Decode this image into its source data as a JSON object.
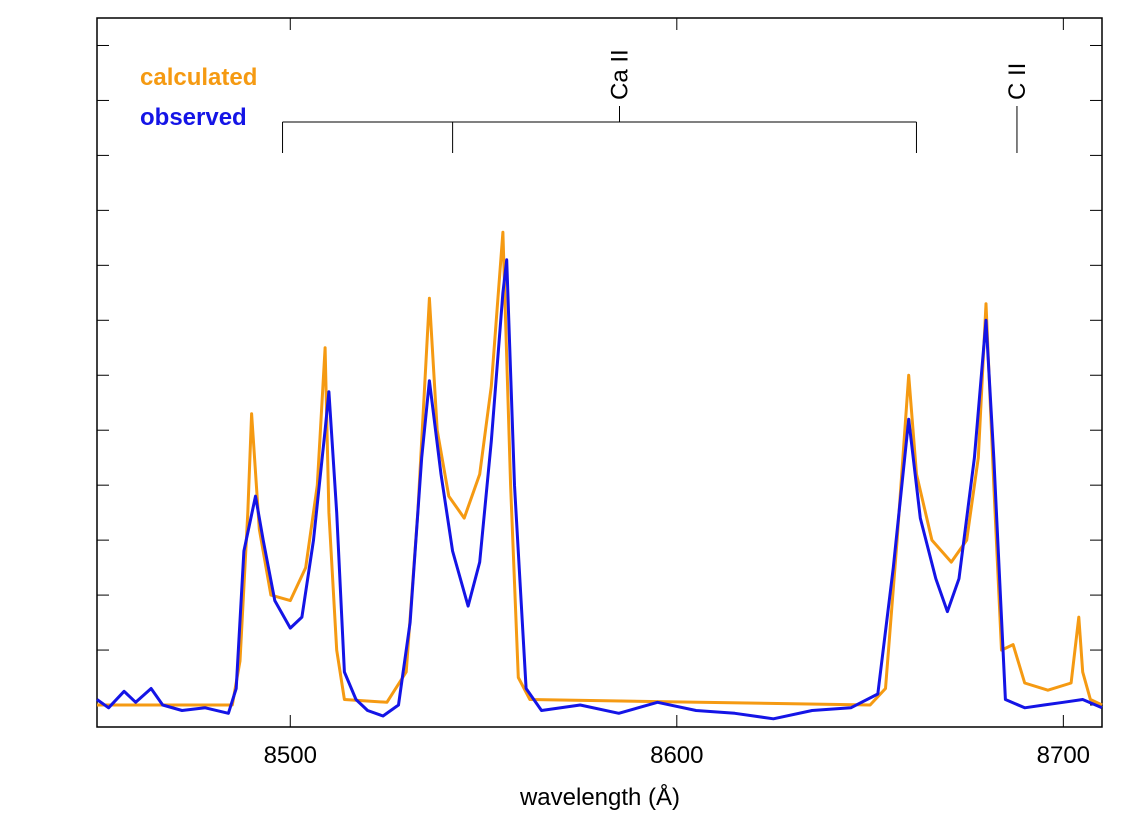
{
  "chart_data": {
    "type": "line",
    "xlabel": "wavelength (Å)",
    "xlim": [
      8450,
      8710
    ],
    "xticks": [
      8500,
      8600,
      8700
    ],
    "ylim": [
      -0.4,
      12.5
    ],
    "yticks": [
      0,
      1,
      2,
      3,
      4,
      5,
      6,
      7,
      8,
      9,
      10,
      11,
      12
    ],
    "legend": "upper left",
    "annotations": [
      {
        "text": "Ca II",
        "x": [
          8498,
          8542,
          8662
        ]
      },
      {
        "text": "C II",
        "x": [
          8688
        ]
      }
    ],
    "series": [
      {
        "name": "calculated",
        "color": "#f59a12",
        "x": [
          8450,
          8485,
          8487,
          8489,
          8490,
          8492,
          8495,
          8500,
          8504,
          8507,
          8509,
          8510,
          8512,
          8514,
          8525,
          8530,
          8533,
          8536,
          8538,
          8541,
          8545,
          8549,
          8552,
          8555,
          8557,
          8559,
          8562,
          8650,
          8654,
          8657,
          8660,
          8662,
          8666,
          8671,
          8675,
          8678,
          8680,
          8682,
          8684,
          8687,
          8690,
          8696,
          8702,
          8704,
          8705,
          8707,
          8710
        ],
        "values": [
          0,
          0,
          0.8,
          3.5,
          5.3,
          3.2,
          2.0,
          1.9,
          2.5,
          4.0,
          6.5,
          3.5,
          1.0,
          0.1,
          0.05,
          0.6,
          3.5,
          7.4,
          5.0,
          3.8,
          3.4,
          4.2,
          5.8,
          8.6,
          4.0,
          0.5,
          0.1,
          0,
          0.3,
          3.0,
          6.0,
          4.2,
          3.0,
          2.6,
          3.0,
          4.5,
          7.3,
          4.0,
          1.0,
          1.1,
          0.4,
          0.27,
          0.4,
          1.6,
          0.6,
          0.1,
          0
        ]
      },
      {
        "name": "observed",
        "color": "#1414e6",
        "x": [
          8450,
          8453,
          8457,
          8460,
          8464,
          8467,
          8472,
          8478,
          8484,
          8486,
          8488,
          8491,
          8493,
          8496,
          8500,
          8503,
          8506,
          8509,
          8510,
          8512,
          8514,
          8517,
          8520,
          8524,
          8528,
          8531,
          8534,
          8536,
          8539,
          8542,
          8546,
          8549,
          8552,
          8555,
          8556,
          8558,
          8561,
          8565,
          8575,
          8585,
          8595,
          8605,
          8615,
          8625,
          8635,
          8645,
          8652,
          8656,
          8660,
          8663,
          8667,
          8670,
          8673,
          8677,
          8680,
          8682,
          8685,
          8690,
          8695,
          8700,
          8705,
          8710
        ],
        "values": [
          0.1,
          -0.05,
          0.25,
          0.05,
          0.3,
          0.0,
          -0.1,
          -0.05,
          -0.15,
          0.3,
          2.8,
          3.8,
          3.0,
          1.9,
          1.4,
          1.6,
          3.0,
          5.0,
          5.7,
          3.5,
          0.6,
          0.1,
          -0.1,
          -0.2,
          0.0,
          1.5,
          4.5,
          5.9,
          4.2,
          2.8,
          1.8,
          2.6,
          4.8,
          7.5,
          8.1,
          4.0,
          0.3,
          -0.1,
          0.0,
          -0.15,
          0.05,
          -0.1,
          -0.15,
          -0.25,
          -0.1,
          -0.05,
          0.2,
          2.5,
          5.2,
          3.4,
          2.3,
          1.7,
          2.3,
          4.5,
          7.0,
          4.5,
          0.1,
          -0.05,
          0.0,
          0.05,
          0.1,
          -0.05
        ]
      }
    ]
  }
}
